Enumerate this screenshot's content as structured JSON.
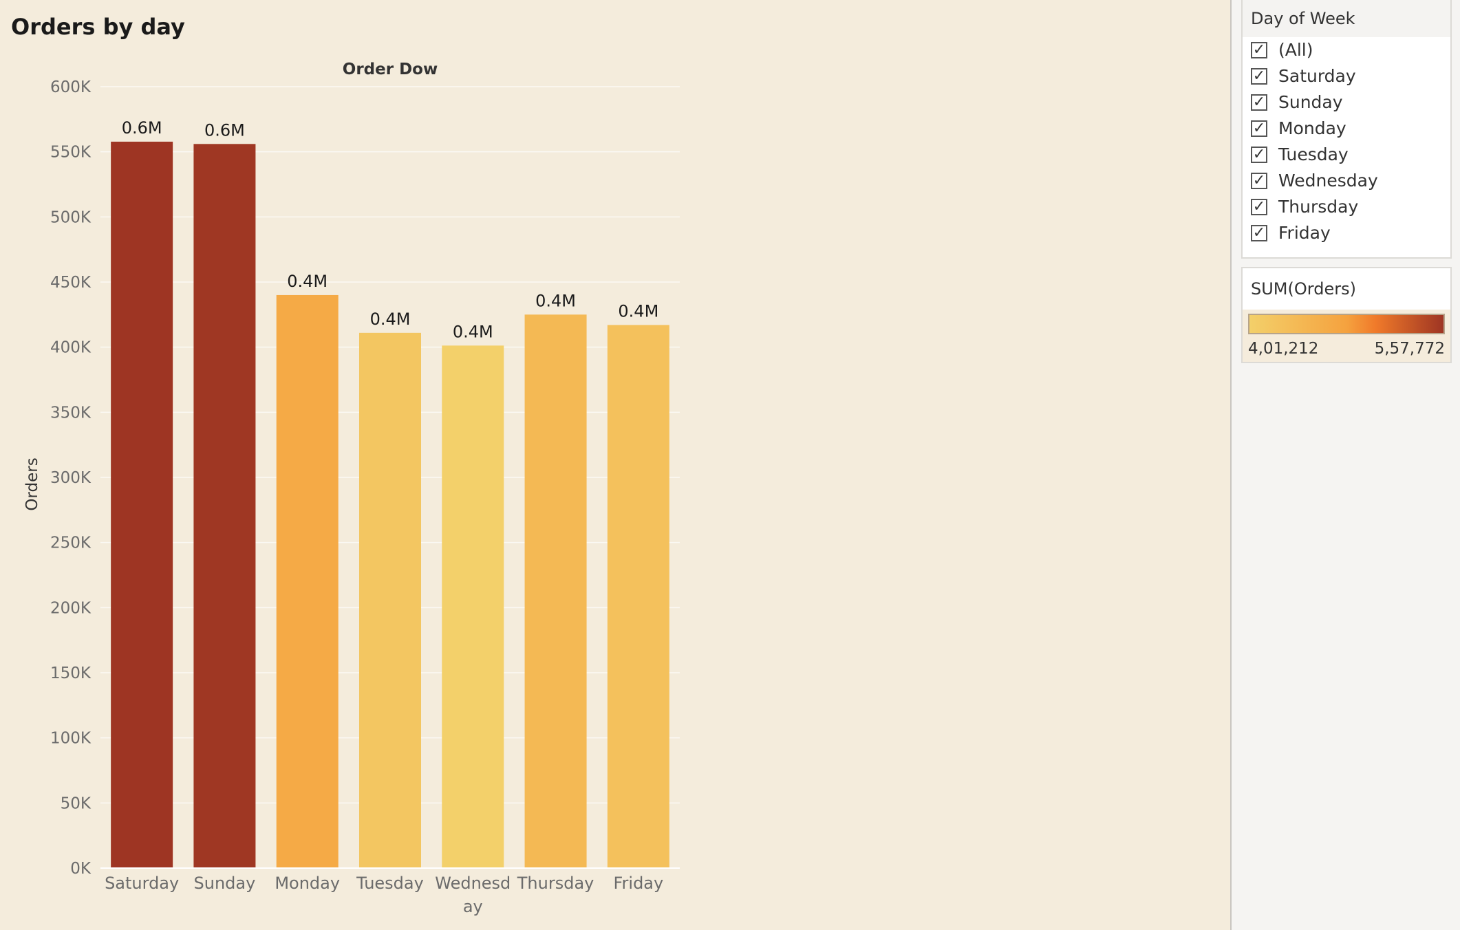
{
  "title": "Orders by day",
  "chart_data": {
    "type": "bar",
    "title": "Orders by day",
    "xlabel": "Order Dow",
    "ylabel": "Orders",
    "categories": [
      "Saturday",
      "Sunday",
      "Monday",
      "Tuesday",
      "Wednesday",
      "Thursday",
      "Friday"
    ],
    "category_display": [
      [
        "Saturday"
      ],
      [
        "Sunday"
      ],
      [
        "Monday"
      ],
      [
        "Tuesday"
      ],
      [
        "Wednesd",
        "ay"
      ],
      [
        "Thursday"
      ],
      [
        "Friday"
      ]
    ],
    "values": [
      557772,
      556000,
      440000,
      411000,
      401212,
      425000,
      417000
    ],
    "data_labels": [
      "0.6M",
      "0.6M",
      "0.4M",
      "0.4M",
      "0.4M",
      "0.4M",
      "0.4M"
    ],
    "ylim": [
      0,
      600000
    ],
    "yticks": [
      0,
      50000,
      100000,
      150000,
      200000,
      250000,
      300000,
      350000,
      400000,
      450000,
      500000,
      550000,
      600000
    ],
    "ytick_labels": [
      "0K",
      "50K",
      "100K",
      "150K",
      "200K",
      "250K",
      "300K",
      "350K",
      "400K",
      "450K",
      "500K",
      "550K",
      "600K"
    ],
    "grid": true,
    "color_scale": {
      "low": "#f3d06a",
      "mid": "#f5a23f",
      "high": "#9e3523"
    }
  },
  "filter": {
    "title": "Day of Week",
    "items": [
      {
        "label": "(All)",
        "checked": true
      },
      {
        "label": "Saturday",
        "checked": true
      },
      {
        "label": "Sunday",
        "checked": true
      },
      {
        "label": "Monday",
        "checked": true
      },
      {
        "label": "Tuesday",
        "checked": true
      },
      {
        "label": "Wednesday",
        "checked": true
      },
      {
        "label": "Thursday",
        "checked": true
      },
      {
        "label": "Friday",
        "checked": true
      }
    ],
    "check_glyph": "✓"
  },
  "legend": {
    "title": "SUM(Orders)",
    "min_label": "4,01,212",
    "max_label": "5,57,772"
  }
}
